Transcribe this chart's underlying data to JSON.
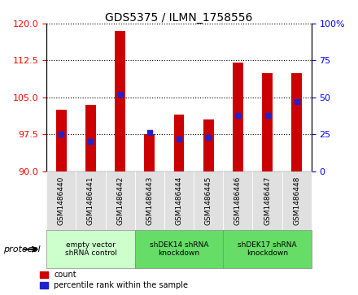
{
  "title": "GDS5375 / ILMN_1758556",
  "samples": [
    "GSM1486440",
    "GSM1486441",
    "GSM1486442",
    "GSM1486443",
    "GSM1486444",
    "GSM1486445",
    "GSM1486446",
    "GSM1486447",
    "GSM1486448"
  ],
  "counts": [
    102.5,
    103.5,
    118.5,
    97.5,
    101.5,
    100.5,
    112.0,
    110.0,
    110.0
  ],
  "percentile_ranks": [
    25,
    20,
    52,
    26,
    22,
    23,
    38,
    38,
    47
  ],
  "ylim_left": [
    90,
    120
  ],
  "ylim_right": [
    0,
    100
  ],
  "yticks_left": [
    90,
    97.5,
    105,
    112.5,
    120
  ],
  "yticks_right": [
    0,
    25,
    50,
    75,
    100
  ],
  "bar_color": "#cc0000",
  "bar_bottom": 90,
  "dot_color": "#2222cc",
  "groups": [
    {
      "label": "empty vector\nshRNA control",
      "start": 0,
      "end": 3,
      "color": "#ccffcc"
    },
    {
      "label": "shDEK14 shRNA\nknockdown",
      "start": 3,
      "end": 6,
      "color": "#66dd66"
    },
    {
      "label": "shDEK17 shRNA\nknockdown",
      "start": 6,
      "end": 9,
      "color": "#66dd66"
    }
  ],
  "protocol_label": "protocol",
  "legend_count_label": "count",
  "legend_percentile_label": "percentile rank within the sample",
  "bar_width": 0.35
}
